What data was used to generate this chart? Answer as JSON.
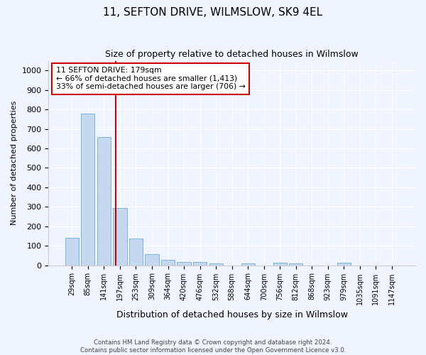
{
  "title": "11, SEFTON DRIVE, WILMSLOW, SK9 4EL",
  "subtitle": "Size of property relative to detached houses in Wilmslow",
  "xlabel": "Distribution of detached houses by size in Wilmslow",
  "ylabel": "Number of detached properties",
  "bar_color": "#c5d8f0",
  "bar_edge_color": "#6aaed6",
  "categories": [
    "29sqm",
    "85sqm",
    "141sqm",
    "197sqm",
    "253sqm",
    "309sqm",
    "364sqm",
    "420sqm",
    "476sqm",
    "532sqm",
    "588sqm",
    "644sqm",
    "700sqm",
    "756sqm",
    "812sqm",
    "868sqm",
    "923sqm",
    "979sqm",
    "1035sqm",
    "1091sqm",
    "1147sqm"
  ],
  "values": [
    140,
    778,
    660,
    295,
    138,
    55,
    28,
    18,
    15,
    8,
    0,
    10,
    0,
    12,
    8,
    0,
    0,
    12,
    0,
    0,
    0
  ],
  "ylim": [
    0,
    1050
  ],
  "yticks": [
    0,
    100,
    200,
    300,
    400,
    500,
    600,
    700,
    800,
    900,
    1000
  ],
  "vline_x": 2.72,
  "vline_color": "#cc0000",
  "annotation_text": "11 SEFTON DRIVE: 179sqm\n← 66% of detached houses are smaller (1,413)\n33% of semi-detached houses are larger (706) →",
  "annotation_box_color": "#cc0000",
  "footer_line1": "Contains HM Land Registry data © Crown copyright and database right 2024.",
  "footer_line2": "Contains public sector information licensed under the Open Government Licence v3.0.",
  "background_color": "#f0f4ff",
  "plot_bg_color": "#f0f4ff"
}
